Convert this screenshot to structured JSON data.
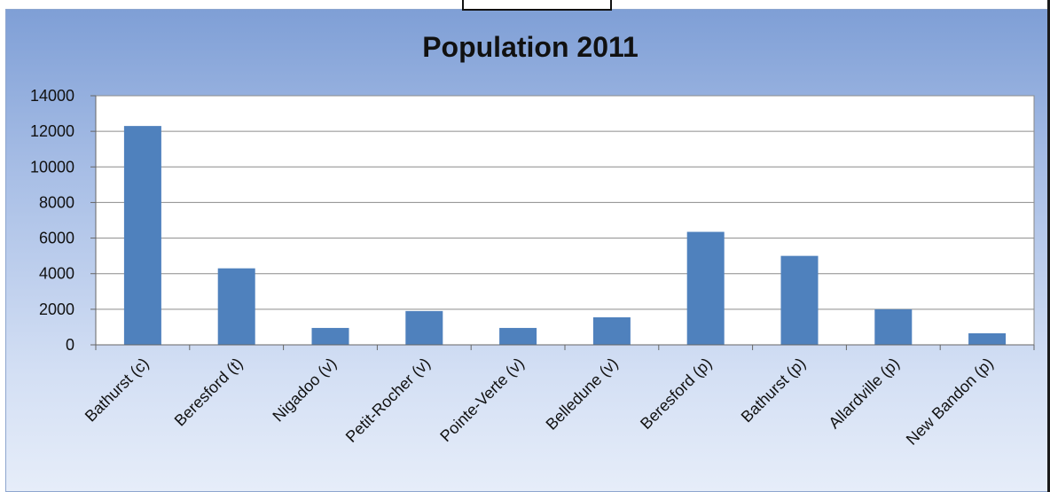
{
  "chart_data": {
    "type": "bar",
    "title": "Population 2011",
    "categories": [
      "Bathurst (c)",
      "Beresford (t)",
      "Nigadoo (v)",
      "Petit-Rocher (v)",
      "Pointe-Verte (v)",
      "Belledune (v)",
      "Beresford (p)",
      "Bathurst (p)",
      "Allardville (p)",
      "New Bandon (p)"
    ],
    "values": [
      12300,
      4300,
      950,
      1900,
      950,
      1550,
      6350,
      5000,
      2000,
      650
    ],
    "ylim": [
      0,
      14000
    ],
    "yticks": [
      "0",
      "2000",
      "4000",
      "6000",
      "8000",
      "10000",
      "12000",
      "14000"
    ],
    "grid": true,
    "legend": "none",
    "bar_color": "#4f81bd"
  }
}
